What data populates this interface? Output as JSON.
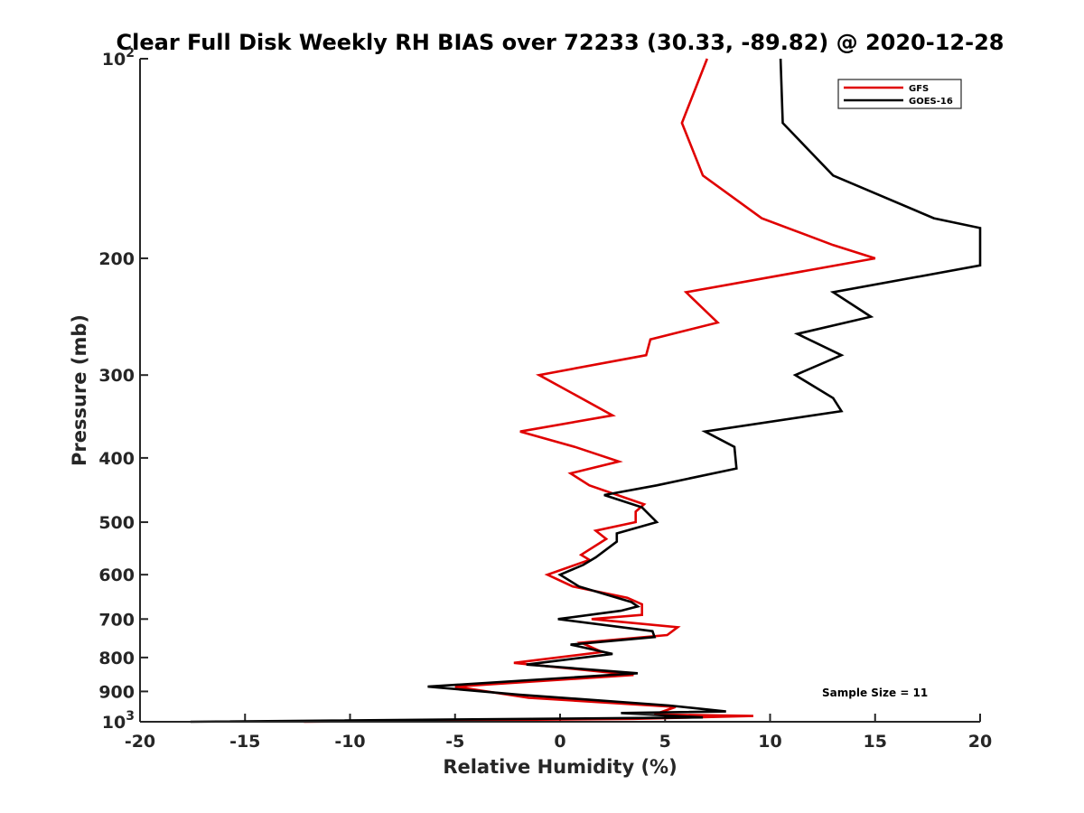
{
  "chart_data": {
    "type": "line",
    "title": "Clear Full Disk Weekly RH BIAS over 72233 (30.33, -89.82) @ 2020-12-28",
    "xlabel": "Relative Humidity (%)",
    "ylabel": "Pressure (mb)",
    "xlim": [
      -20,
      20
    ],
    "ylim": [
      100,
      1000
    ],
    "y_scale": "log",
    "y_reversed": true,
    "grid": false,
    "legend_position": "top-right",
    "x_ticks": [
      "-20",
      "-15",
      "-10",
      "-5",
      "0",
      "5",
      "10",
      "15",
      "20"
    ],
    "y_ticks": [
      {
        "value": 100,
        "label": "10",
        "sup": "2"
      },
      {
        "value": 200,
        "label": "200",
        "sup": ""
      },
      {
        "value": 300,
        "label": "300",
        "sup": ""
      },
      {
        "value": 400,
        "label": "400",
        "sup": ""
      },
      {
        "value": 500,
        "label": "500",
        "sup": ""
      },
      {
        "value": 600,
        "label": "600",
        "sup": ""
      },
      {
        "value": 700,
        "label": "700",
        "sup": ""
      },
      {
        "value": 800,
        "label": "800",
        "sup": ""
      },
      {
        "value": 900,
        "label": "900",
        "sup": ""
      },
      {
        "value": 1000,
        "label": "10",
        "sup": "3"
      }
    ],
    "annotation": "Sample Size = 11",
    "series": [
      {
        "name": "GFS",
        "color": "#e00000",
        "points": [
          [
            7.0,
            100
          ],
          [
            5.8,
            125
          ],
          [
            6.8,
            150
          ],
          [
            9.6,
            174
          ],
          [
            13.0,
            191
          ],
          [
            15.0,
            200
          ],
          [
            6.0,
            225
          ],
          [
            7.5,
            250
          ],
          [
            4.3,
            265
          ],
          [
            4.1,
            280
          ],
          [
            -1.0,
            300
          ],
          [
            2.5,
            345
          ],
          [
            -1.9,
            365
          ],
          [
            0.7,
            385
          ],
          [
            2.8,
            405
          ],
          [
            0.5,
            422
          ],
          [
            1.4,
            440
          ],
          [
            4.0,
            470
          ],
          [
            3.6,
            482
          ],
          [
            3.6,
            500
          ],
          [
            1.7,
            515
          ],
          [
            2.2,
            530
          ],
          [
            1.0,
            560
          ],
          [
            1.4,
            570
          ],
          [
            -0.6,
            600
          ],
          [
            0.6,
            625
          ],
          [
            3.2,
            650
          ],
          [
            3.9,
            665
          ],
          [
            3.9,
            690
          ],
          [
            1.5,
            700
          ],
          [
            5.6,
            720
          ],
          [
            5.1,
            740
          ],
          [
            1.0,
            760
          ],
          [
            2.0,
            785
          ],
          [
            -2.2,
            815
          ],
          [
            3.5,
            850
          ],
          [
            -5.0,
            885
          ],
          [
            -1.5,
            920
          ],
          [
            5.5,
            950
          ],
          [
            4.5,
            975
          ],
          [
            9.2,
            980
          ],
          [
            3.5,
            990
          ],
          [
            -12.2,
            1000
          ]
        ]
      },
      {
        "name": "GOES-16",
        "color": "#000000",
        "points": [
          [
            10.5,
            100
          ],
          [
            10.6,
            125
          ],
          [
            13.0,
            150
          ],
          [
            17.8,
            174
          ],
          [
            20.0,
            180
          ],
          [
            20.0,
            205
          ],
          [
            13.0,
            225
          ],
          [
            14.8,
            245
          ],
          [
            11.3,
            260
          ],
          [
            13.4,
            280
          ],
          [
            11.2,
            300
          ],
          [
            13.0,
            325
          ],
          [
            13.4,
            340
          ],
          [
            6.9,
            365
          ],
          [
            8.3,
            385
          ],
          [
            8.4,
            415
          ],
          [
            4.6,
            440
          ],
          [
            2.1,
            455
          ],
          [
            3.9,
            475
          ],
          [
            4.6,
            500
          ],
          [
            2.7,
            520
          ],
          [
            2.7,
            535
          ],
          [
            1.7,
            565
          ],
          [
            1.1,
            580
          ],
          [
            0.0,
            600
          ],
          [
            0.9,
            625
          ],
          [
            3.4,
            660
          ],
          [
            3.7,
            670
          ],
          [
            2.9,
            680
          ],
          [
            -0.1,
            700
          ],
          [
            4.4,
            730
          ],
          [
            4.5,
            745
          ],
          [
            0.5,
            765
          ],
          [
            2.5,
            790
          ],
          [
            -1.6,
            820
          ],
          [
            3.7,
            845
          ],
          [
            -6.3,
            885
          ],
          [
            -2.0,
            910
          ],
          [
            5.2,
            945
          ],
          [
            7.9,
            965
          ],
          [
            2.9,
            970
          ],
          [
            6.8,
            985
          ],
          [
            -17.6,
            1000
          ]
        ]
      }
    ]
  }
}
